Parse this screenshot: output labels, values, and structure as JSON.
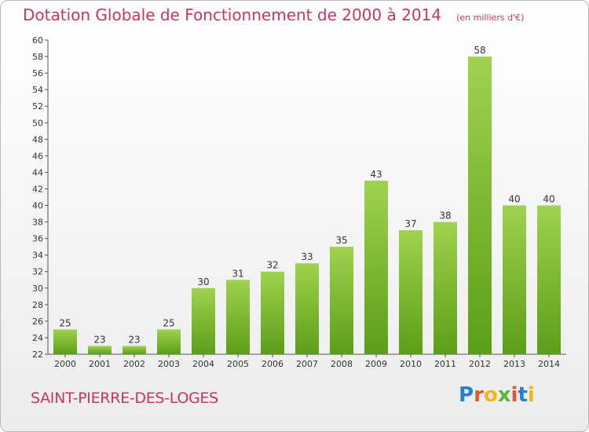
{
  "chart_data": {
    "type": "bar",
    "title": "Dotation Globale de Fonctionnement de 2000 à 2014",
    "unit": "(en milliers d'€)",
    "categories": [
      "2000",
      "2001",
      "2002",
      "2003",
      "2004",
      "2005",
      "2006",
      "2007",
      "2008",
      "2009",
      "2010",
      "2011",
      "2012",
      "2013",
      "2014"
    ],
    "values": [
      25,
      23,
      23,
      25,
      30,
      31,
      32,
      33,
      35,
      43,
      37,
      38,
      58,
      40,
      40
    ],
    "ylim": [
      22,
      60
    ],
    "yticks": [
      22,
      24,
      26,
      28,
      30,
      32,
      34,
      36,
      38,
      40,
      42,
      44,
      46,
      48,
      50,
      52,
      54,
      56,
      58,
      60
    ],
    "xlabel": "",
    "ylabel": "",
    "grid": false,
    "bar_color": "#7cc130"
  },
  "commune": "SAINT-PIERRE-DES-LOGES",
  "logo": {
    "text": "Proxiti",
    "colors": [
      "#2a7fd4",
      "#e8572a",
      "#f2b619",
      "#58b935",
      "#e8572a",
      "#2a7fd4",
      "#f2b619"
    ]
  }
}
